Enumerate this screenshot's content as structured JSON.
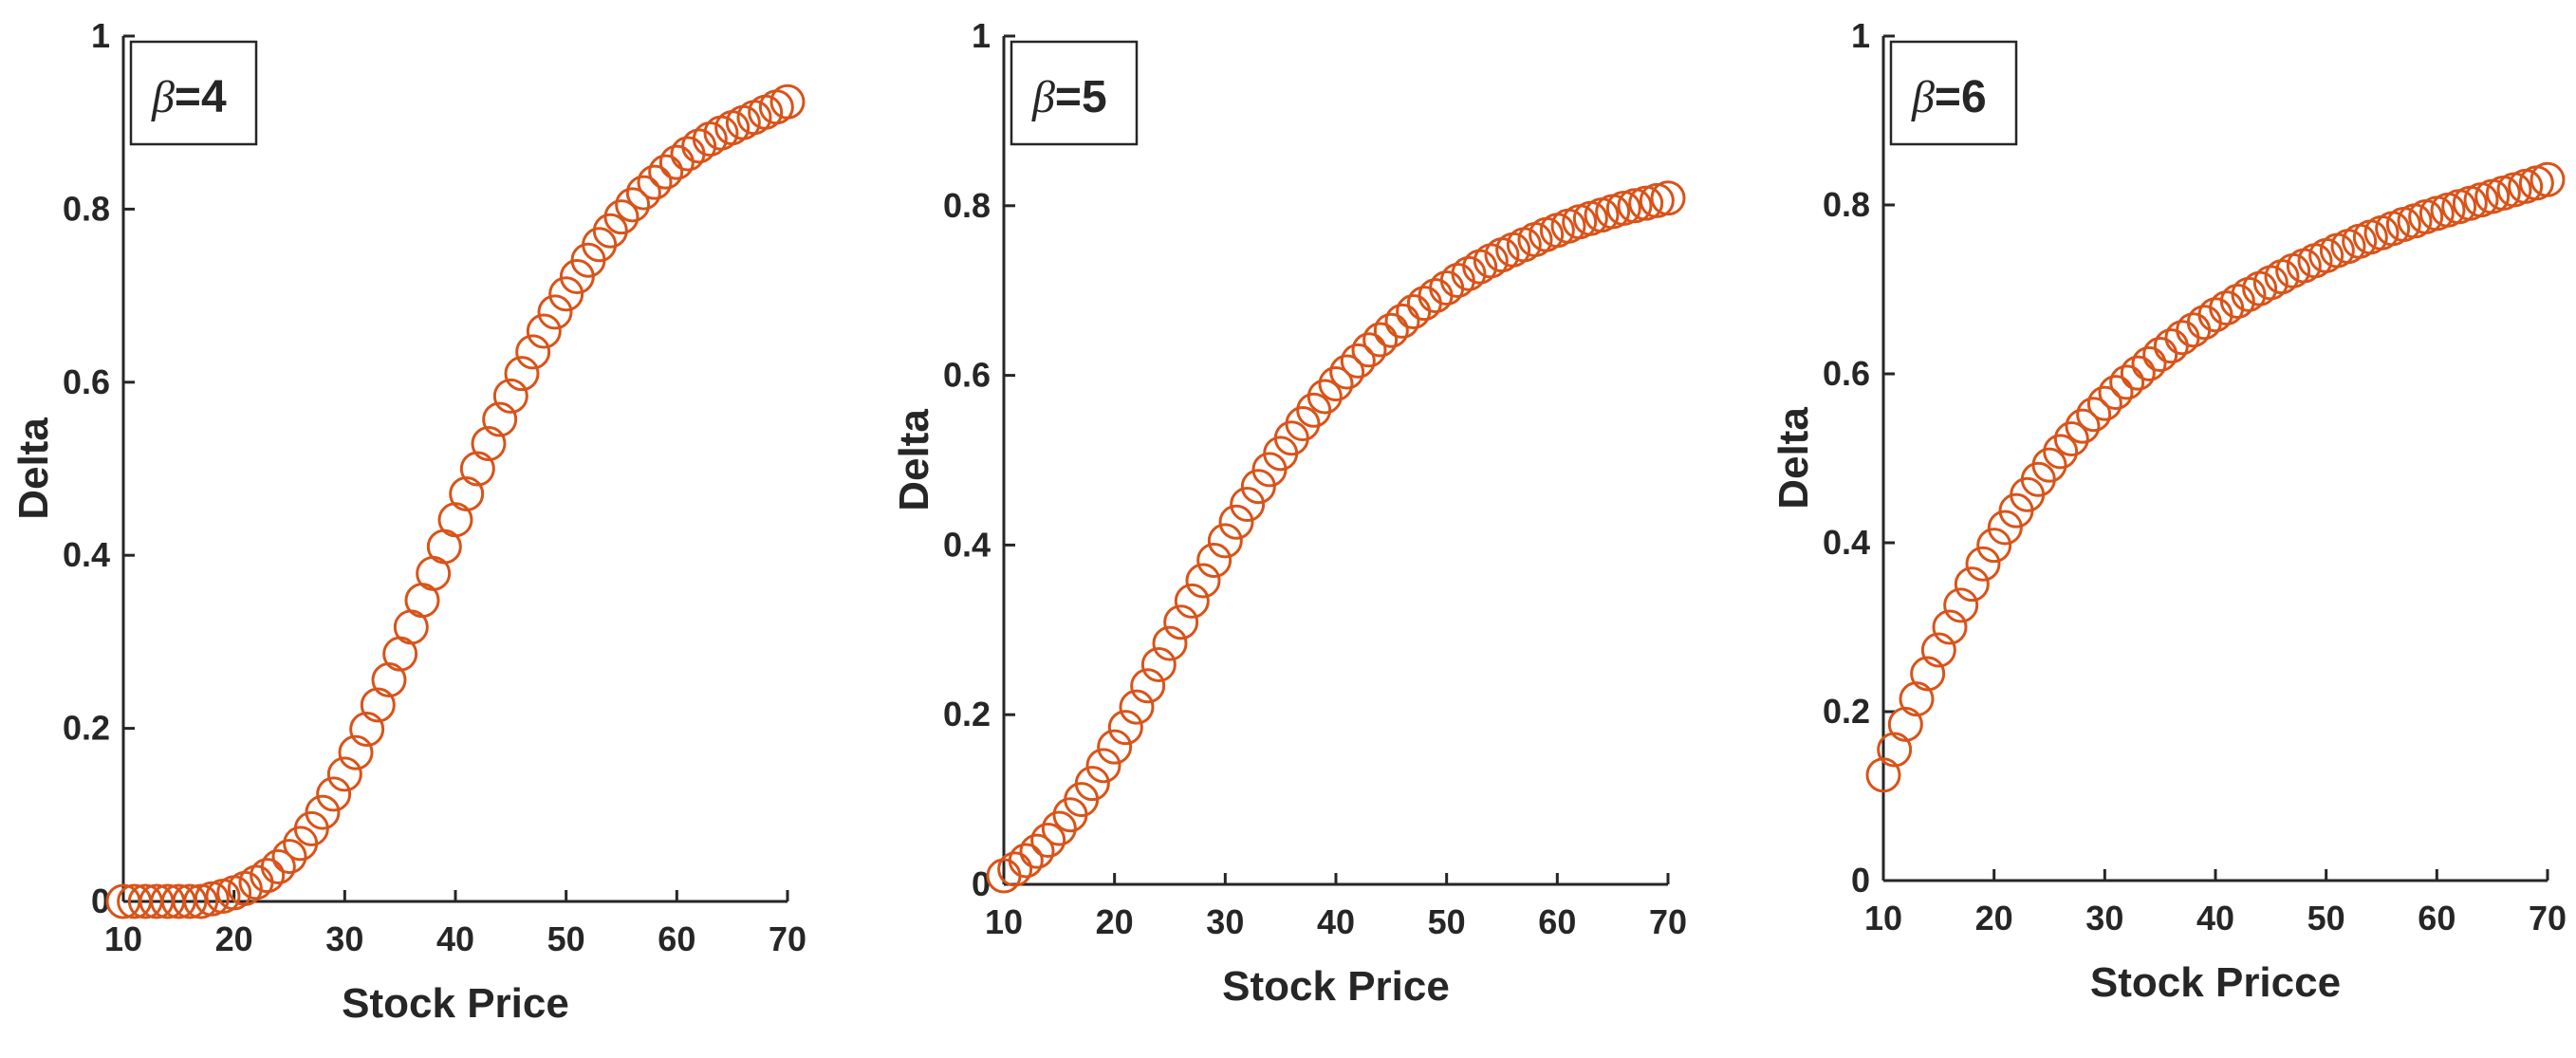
{
  "colors": {
    "marker": "#D95319",
    "axis": "#262626",
    "background": "#ffffff"
  },
  "chart_data": [
    {
      "type": "scatter",
      "marker": "circle",
      "legend_symbol": "β",
      "legend_value": "=4",
      "legend_placement": "top-left",
      "xlabel": "Stock Price",
      "ylabel": "Delta",
      "xlim": [
        10,
        70
      ],
      "ylim": [
        0,
        1
      ],
      "xticks": [
        "10",
        "20",
        "30",
        "40",
        "50",
        "60",
        "70"
      ],
      "yticks": [
        "0",
        "0.2",
        "0.4",
        "0.6",
        "0.8",
        "1"
      ],
      "points": {
        "x": [
          10,
          11,
          12,
          13,
          14,
          15,
          16,
          17,
          18,
          19,
          20,
          21,
          22,
          23,
          24,
          25,
          26,
          27,
          28,
          29,
          30,
          31,
          32,
          33,
          34,
          35,
          36,
          37,
          38,
          39,
          40,
          41,
          42,
          43,
          44,
          45,
          46,
          47,
          48,
          49,
          50,
          51,
          52,
          53,
          54,
          55,
          56,
          57,
          58,
          59,
          60,
          61,
          62,
          63,
          64,
          65,
          66,
          67,
          68,
          69,
          70
        ],
        "y": [
          0,
          0,
          0,
          0,
          0,
          0,
          0,
          0,
          0.003,
          0.006,
          0.01,
          0.015,
          0.022,
          0.03,
          0.04,
          0.052,
          0.067,
          0.084,
          0.103,
          0.124,
          0.147,
          0.172,
          0.199,
          0.227,
          0.256,
          0.286,
          0.317,
          0.348,
          0.379,
          0.41,
          0.441,
          0.471,
          0.5,
          0.529,
          0.557,
          0.584,
          0.61,
          0.635,
          0.659,
          0.681,
          0.702,
          0.722,
          0.741,
          0.759,
          0.775,
          0.791,
          0.805,
          0.819,
          0.831,
          0.843,
          0.854,
          0.864,
          0.873,
          0.881,
          0.888,
          0.894,
          0.9,
          0.906,
          0.912,
          0.918,
          0.924
        ]
      }
    },
    {
      "type": "scatter",
      "marker": "circle",
      "legend_symbol": "β",
      "legend_value": "=5",
      "legend_placement": "top-left",
      "xlabel": "Stock Price",
      "ylabel": "Delta",
      "xlim": [
        10,
        70
      ],
      "ylim": [
        0,
        1
      ],
      "xticks": [
        "10",
        "20",
        "30",
        "40",
        "50",
        "60",
        "70"
      ],
      "yticks": [
        "0",
        "0.2",
        "0.4",
        "0.6",
        "0.8",
        "1"
      ],
      "points": {
        "x": [
          10,
          11,
          12,
          13,
          14,
          15,
          16,
          17,
          18,
          19,
          20,
          21,
          22,
          23,
          24,
          25,
          26,
          27,
          28,
          29,
          30,
          31,
          32,
          33,
          34,
          35,
          36,
          37,
          38,
          39,
          40,
          41,
          42,
          43,
          44,
          45,
          46,
          47,
          48,
          49,
          50,
          51,
          52,
          53,
          54,
          55,
          56,
          57,
          58,
          59,
          60,
          61,
          62,
          63,
          64,
          65,
          66,
          67,
          68,
          69,
          70
        ],
        "y": [
          0.01,
          0.018,
          0.028,
          0.039,
          0.052,
          0.066,
          0.082,
          0.1,
          0.119,
          0.14,
          0.162,
          0.185,
          0.209,
          0.234,
          0.259,
          0.284,
          0.309,
          0.334,
          0.358,
          0.382,
          0.405,
          0.427,
          0.448,
          0.469,
          0.489,
          0.508,
          0.526,
          0.543,
          0.559,
          0.575,
          0.59,
          0.604,
          0.617,
          0.63,
          0.642,
          0.653,
          0.664,
          0.675,
          0.685,
          0.694,
          0.703,
          0.712,
          0.72,
          0.728,
          0.735,
          0.742,
          0.748,
          0.754,
          0.76,
          0.766,
          0.771,
          0.776,
          0.781,
          0.785,
          0.789,
          0.793,
          0.797,
          0.8,
          0.803,
          0.806,
          0.809
        ]
      }
    },
    {
      "type": "scatter",
      "marker": "circle",
      "legend_symbol": "β",
      "legend_value": "=6",
      "legend_placement": "top-left",
      "xlabel": "Stock Pricce",
      "ylabel": "Delta",
      "xlim": [
        10,
        70
      ],
      "ylim": [
        0,
        1
      ],
      "xticks": [
        "10",
        "20",
        "30",
        "40",
        "50",
        "60",
        "70"
      ],
      "yticks": [
        "0",
        "0.2",
        "0.4",
        "0.6",
        "0.8",
        "1"
      ],
      "points": {
        "x": [
          10,
          11,
          12,
          13,
          14,
          15,
          16,
          17,
          18,
          19,
          20,
          21,
          22,
          23,
          24,
          25,
          26,
          27,
          28,
          29,
          30,
          31,
          32,
          33,
          34,
          35,
          36,
          37,
          38,
          39,
          40,
          41,
          42,
          43,
          44,
          45,
          46,
          47,
          48,
          49,
          50,
          51,
          52,
          53,
          54,
          55,
          56,
          57,
          58,
          59,
          60,
          61,
          62,
          63,
          64,
          65,
          66,
          67,
          68,
          69,
          70
        ],
        "y": [
          0.125,
          0.155,
          0.185,
          0.215,
          0.245,
          0.273,
          0.3,
          0.326,
          0.351,
          0.375,
          0.397,
          0.418,
          0.438,
          0.457,
          0.475,
          0.492,
          0.508,
          0.523,
          0.538,
          0.552,
          0.565,
          0.578,
          0.59,
          0.601,
          0.612,
          0.623,
          0.633,
          0.643,
          0.652,
          0.661,
          0.67,
          0.678,
          0.686,
          0.694,
          0.701,
          0.708,
          0.715,
          0.722,
          0.728,
          0.734,
          0.74,
          0.746,
          0.751,
          0.757,
          0.762,
          0.767,
          0.772,
          0.777,
          0.781,
          0.786,
          0.79,
          0.794,
          0.798,
          0.802,
          0.806,
          0.81,
          0.814,
          0.818,
          0.822,
          0.826,
          0.83
        ]
      }
    }
  ]
}
